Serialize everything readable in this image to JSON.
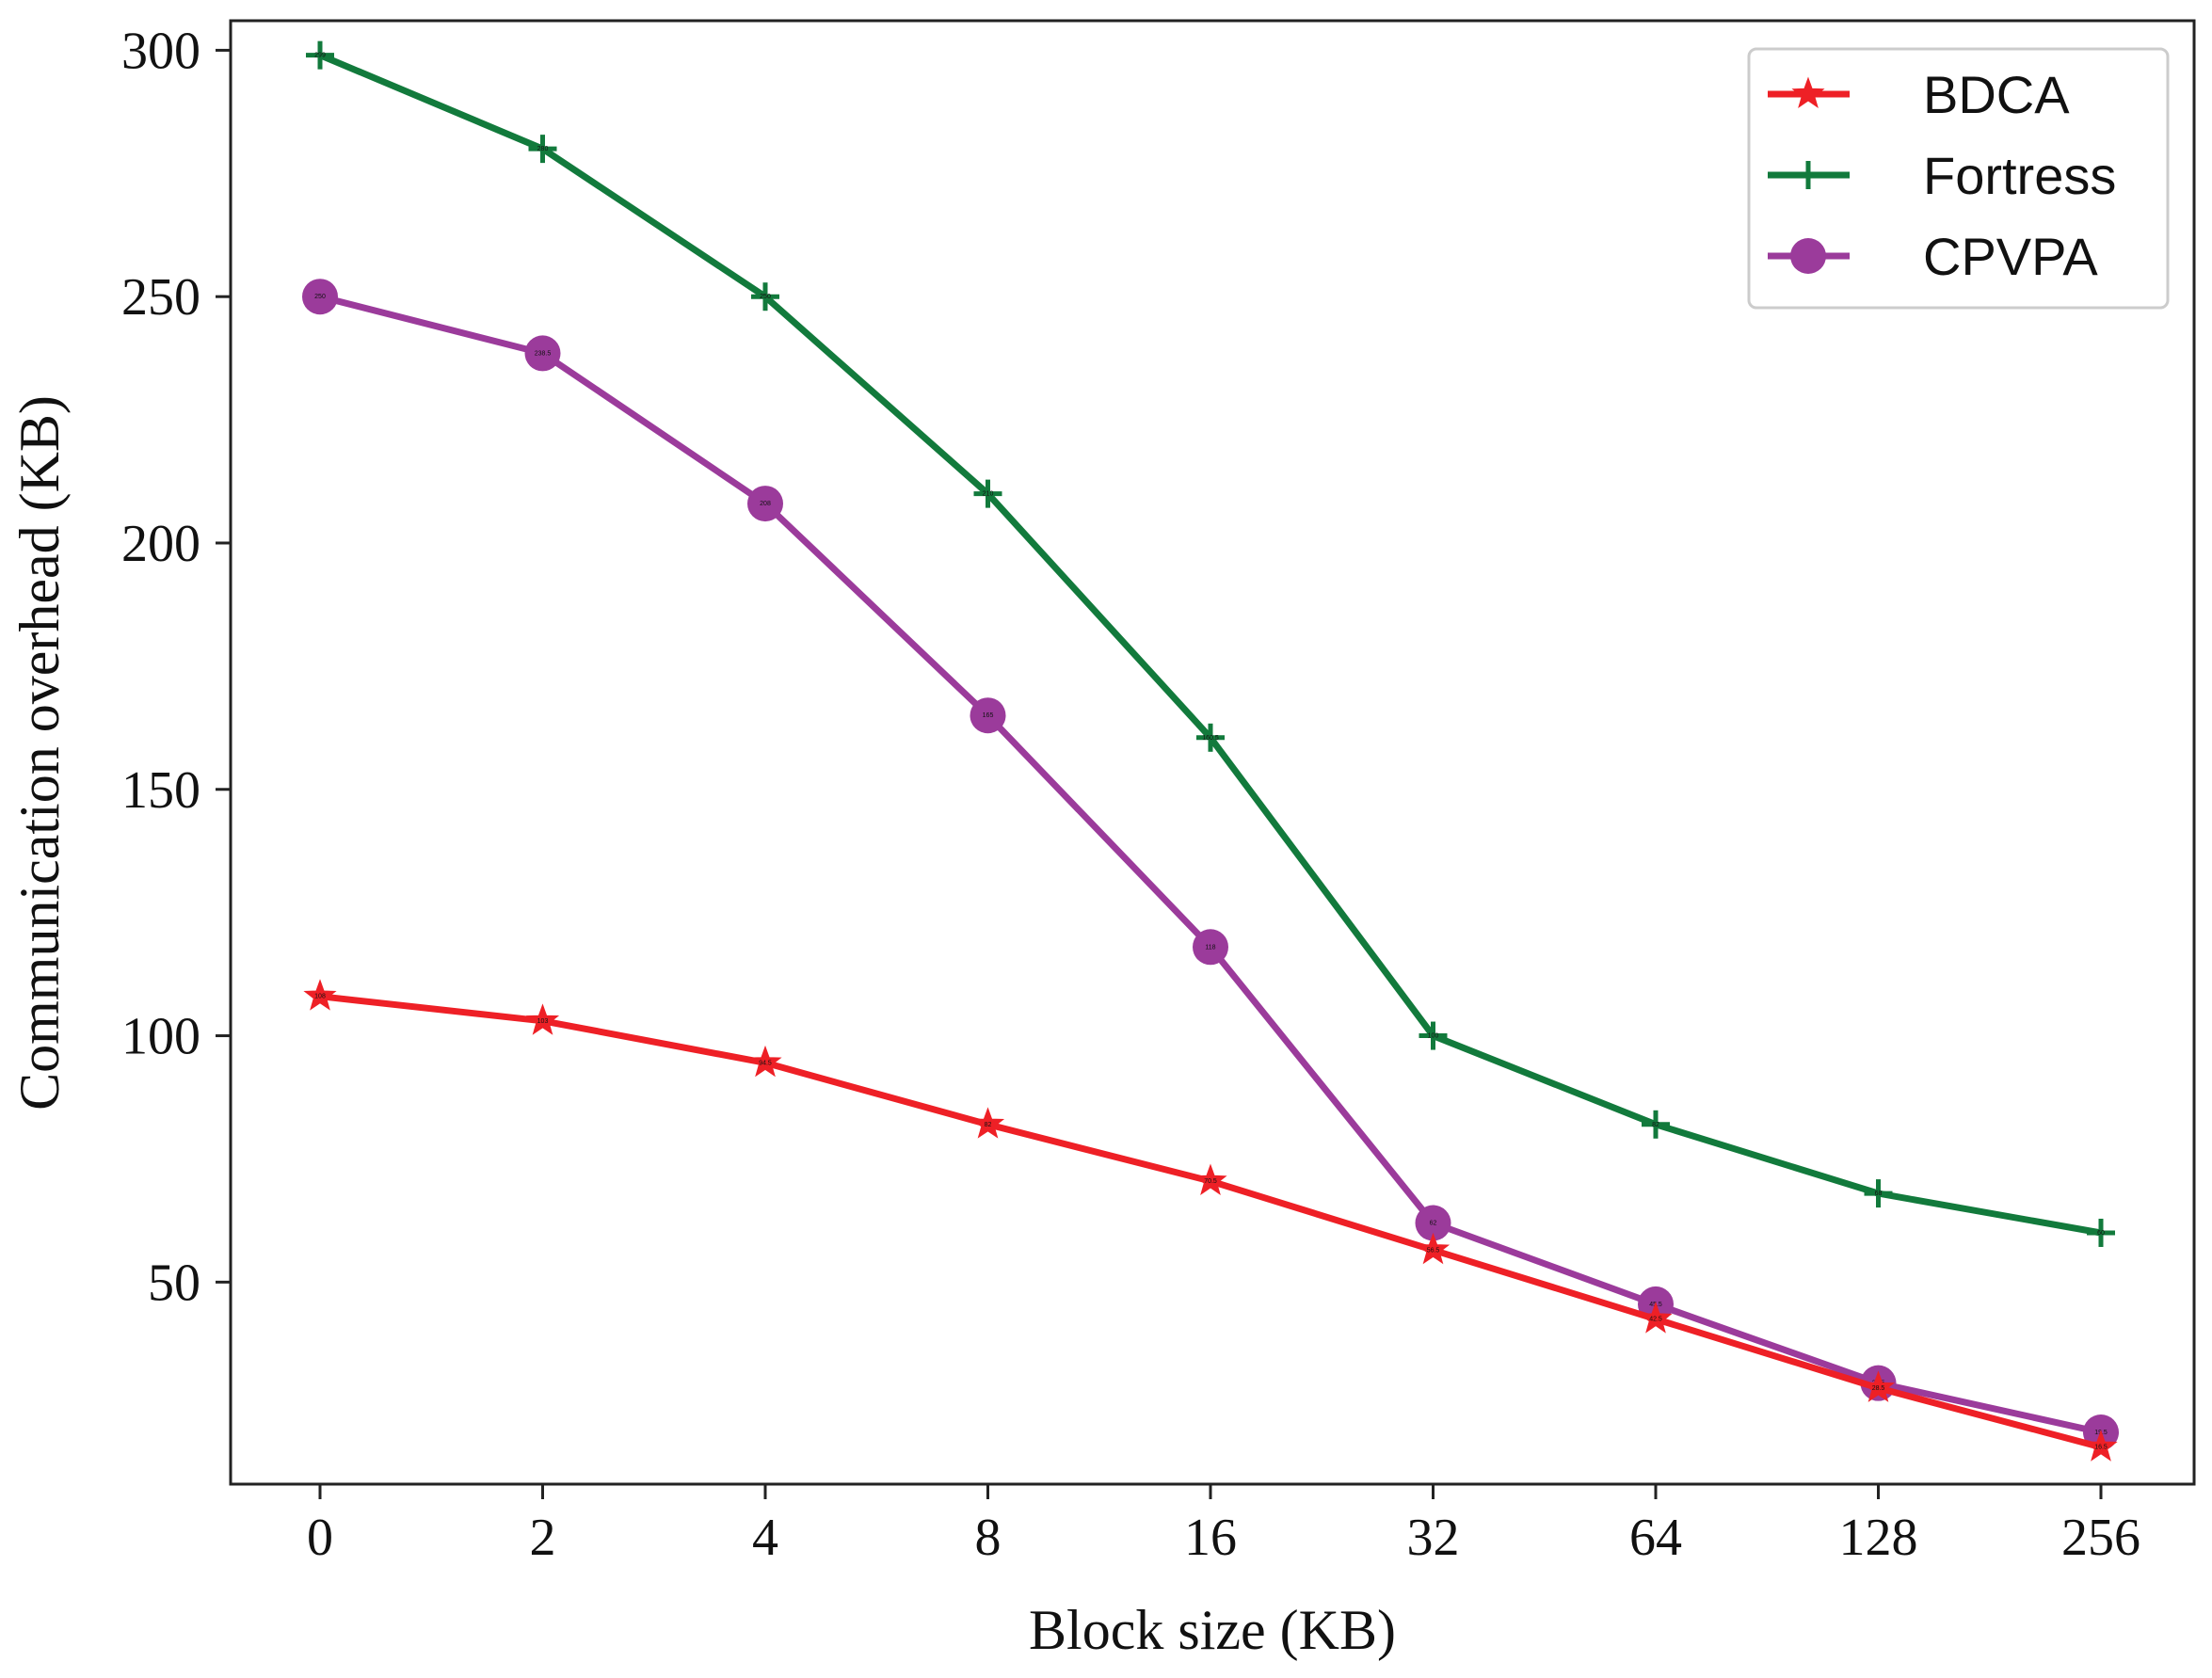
{
  "chart_data": {
    "type": "line",
    "title": "",
    "xlabel": "Block size (KB)",
    "ylabel": "Communication overhead (KB)",
    "categories": [
      "0",
      "2",
      "4",
      "8",
      "16",
      "32",
      "64",
      "128",
      "256"
    ],
    "ylim": [
      9,
      306
    ],
    "yticks": [
      "50",
      "100",
      "150",
      "200",
      "250",
      "300"
    ],
    "ytick_values": [
      50,
      100,
      150,
      200,
      250,
      300
    ],
    "legend_position": "top-right",
    "grid": false,
    "series": [
      {
        "name": "BDCA",
        "color": "#ee2026",
        "marker": "star",
        "values": [
          108,
          103,
          94.5,
          82,
          70.5,
          56.5,
          42.5,
          28.5,
          16.5
        ]
      },
      {
        "name": "Fortress",
        "color": "#127a3c",
        "marker": "plus",
        "values": [
          299,
          280,
          250,
          210,
          160.5,
          100,
          82,
          68,
          60
        ]
      },
      {
        "name": "CPVPA",
        "color": "#9b3b9b",
        "marker": "circle",
        "values": [
          250,
          238.5,
          208,
          165,
          118,
          62,
          45.5,
          29.5,
          19.5
        ]
      }
    ]
  }
}
